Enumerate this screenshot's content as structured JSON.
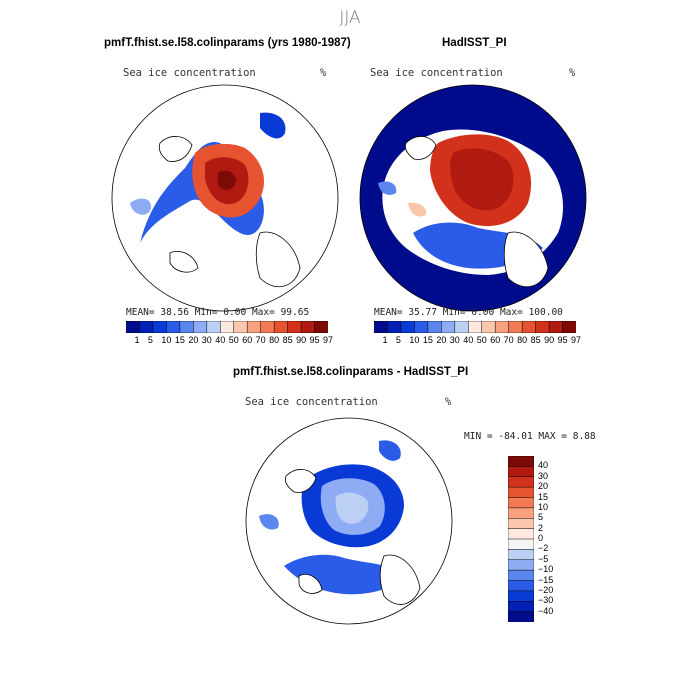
{
  "page": {
    "title": "JJA"
  },
  "palette": {
    "conc": [
      "#000c8b",
      "#0020b3",
      "#0a3ad6",
      "#2a5ce8",
      "#5b86ee",
      "#8eacf3",
      "#bcd0f6",
      "#fde9de",
      "#fcc6ad",
      "#f9a07f",
      "#f27a55",
      "#e65330",
      "#d2321b",
      "#b01a10",
      "#7c0a06"
    ],
    "diff": [
      "#7c0a06",
      "#b01a10",
      "#d2321b",
      "#e65330",
      "#f27a55",
      "#f9a07f",
      "#fcc6ad",
      "#fde9de",
      "#f4f4f4",
      "#bcd0f6",
      "#8eacf3",
      "#5b86ee",
      "#2a5ce8",
      "#0a3ad6",
      "#0020b3",
      "#000c8b"
    ],
    "land": "#ffffff"
  },
  "chart_data": [
    {
      "type": "heatmap",
      "panel": "model",
      "title": "pmfT.fhist.se.l58.colinparams (yrs 1980-1987)",
      "variable": "Sea ice concentration",
      "units": "%",
      "stats": {
        "mean_label": "MEAN=",
        "mean": "38.56",
        "min_label": "Min=",
        "min": "0.00",
        "max_label": "Max=",
        "max": "99.65"
      },
      "colorbar_ticks": [
        "1",
        "5",
        "10",
        "15",
        "20",
        "30",
        "40",
        "50",
        "60",
        "70",
        "80",
        "85",
        "90",
        "95",
        "97"
      ]
    },
    {
      "type": "heatmap",
      "panel": "obs",
      "title": "HadISST_PI",
      "variable": "Sea ice concentration",
      "units": "%",
      "stats": {
        "mean_label": "MEAN=",
        "mean": "35.77",
        "min_label": "Min=",
        "min": "0.00",
        "max_label": "Max=",
        "max": "100.00"
      },
      "colorbar_ticks": [
        "1",
        "5",
        "10",
        "15",
        "20",
        "30",
        "40",
        "50",
        "60",
        "70",
        "80",
        "85",
        "90",
        "95",
        "97"
      ]
    },
    {
      "type": "heatmap",
      "panel": "difference",
      "title": "pmfT.fhist.se.l58.colinparams - HadISST_PI",
      "variable": "Sea ice concentration",
      "units": "%",
      "stats": {
        "min_label": "MIN =",
        "min": "-84.01",
        "max_label": "MAX =",
        "max": "8.88"
      },
      "colorbar_ticks": [
        "40",
        "30",
        "20",
        "15",
        "10",
        "5",
        "2",
        "0",
        "−2",
        "−5",
        "−10",
        "−15",
        "−20",
        "−30",
        "−40"
      ]
    }
  ]
}
